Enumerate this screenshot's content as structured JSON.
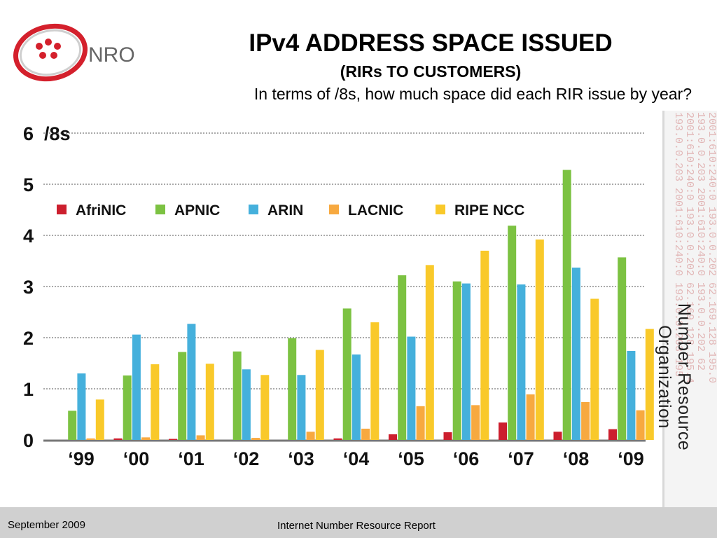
{
  "header": {
    "logo_text": "NRO",
    "title": "IPv4 ADDRESS SPACE ISSUED",
    "subtitle": "(RIRs TO CUSTOMERS)",
    "question": "In terms of /8s, how much space did each RIR issue by year?"
  },
  "side": {
    "org_name": "Number Resource Organization",
    "ip_lines": [
      "2001:610:240:0   193.0.0.202   62.169.128   195.0",
      "193.0.0.203   2001:610:240:0   193.0.0.202   62",
      "2001:610:240:0   193.0.0.202   62.169.128.195.4",
      "193.0.0.203   2001:610:240:0   193.0.0.203   195"
    ]
  },
  "footer": {
    "date": "September 2009",
    "report": "Internet Number Resource Report"
  },
  "colors": {
    "AfriNIC": "#cc1f2e",
    "APNIC": "#7cc242",
    "ARIN": "#45b0dc",
    "LACNIC": "#f7a940",
    "RIPE NCC": "#f9c92a",
    "grid": "#555555",
    "footer_bg": "#d0d0d0"
  },
  "chart_data": {
    "type": "bar",
    "title": "IPv4 ADDRESS SPACE ISSUED",
    "ylabel": "/8s",
    "ylim": [
      0,
      6
    ],
    "y_ticks": [
      "0",
      "1",
      "2",
      "3",
      "4",
      "5",
      "6"
    ],
    "y_top_tick_label": "6  /8s",
    "grid": "dotted horizontal",
    "legend_position": "top-left",
    "categories": [
      "‘99",
      "‘00",
      "‘01",
      "‘02",
      "‘03",
      "‘04",
      "‘05",
      "‘06",
      "‘07",
      "‘08",
      "‘09"
    ],
    "series": [
      {
        "name": "AfriNIC",
        "values": [
          0.0,
          0.03,
          0.02,
          0.0,
          0.0,
          0.03,
          0.11,
          0.15,
          0.34,
          0.16,
          0.21
        ]
      },
      {
        "name": "APNIC",
        "values": [
          0.57,
          1.26,
          1.72,
          1.73,
          1.99,
          2.57,
          3.22,
          3.1,
          4.19,
          5.28,
          3.57
        ]
      },
      {
        "name": "ARIN",
        "values": [
          1.3,
          2.06,
          2.27,
          1.38,
          1.27,
          1.67,
          2.02,
          3.06,
          3.04,
          3.37,
          1.74
        ]
      },
      {
        "name": "LACNIC",
        "values": [
          0.03,
          0.05,
          0.09,
          0.04,
          0.16,
          0.22,
          0.66,
          0.68,
          0.89,
          0.74,
          0.58
        ]
      },
      {
        "name": "RIPE NCC",
        "values": [
          0.79,
          1.48,
          1.49,
          1.27,
          1.76,
          2.3,
          3.42,
          3.7,
          3.92,
          2.76,
          2.17
        ]
      }
    ]
  }
}
